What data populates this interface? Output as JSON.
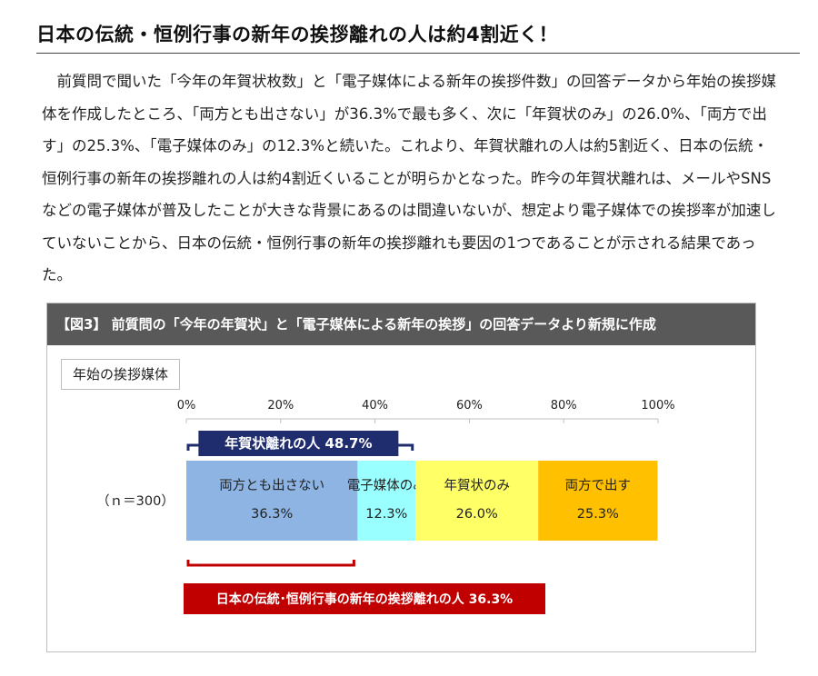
{
  "page": {
    "heading": "日本の伝統・恒例行事の新年の挨拶離れの人は約4割近く！",
    "paragraph": "　前質問で聞いた「今年の年賀状枚数」と「電子媒体による新年の挨拶件数」の回答データから年始の挨拶媒体を作成したところ、「両方とも出さない」が36.3%で最も多く、次に「年賀状のみ」の26.0%、「両方で出す」の25.3%、「電子媒体のみ」の12.3%と続いた。これより、年賀状離れの人は約5割近く、日本の伝統・恒例行事の新年の挨拶離れの人は約4割近くいることが明らかとなった。昨今の年賀状離れは、メールやSNSなどの電子媒体が普及したことが大きな背景にあるのは間違いないが、想定より電子媒体での挨拶率が加速していないことから、日本の伝統・恒例行事の新年の挨拶離れも要因の1つであることが示される結果であった。"
  },
  "figure": {
    "header": "【図3】 前質問の「今年の年賀状」と「電子媒体による新年の挨拶」の回答データより新規に作成",
    "subtitle": "年始の挨拶媒体"
  },
  "chart_data": {
    "type": "bar",
    "orientation": "horizontal-stacked-100",
    "categories": [
      "（ｎ＝300）"
    ],
    "series": [
      {
        "name": "両方とも出さない",
        "values": [
          36.3
        ],
        "label": "36.3%",
        "color": "#8db4e2"
      },
      {
        "name": "電子媒体のみ",
        "values": [
          12.3
        ],
        "label": "12.3%",
        "color": "#99ffff"
      },
      {
        "name": "年賀状のみ",
        "values": [
          26.0
        ],
        "label": "26.0%",
        "color": "#ffff66"
      },
      {
        "name": "両方で出す",
        "values": [
          25.3
        ],
        "label": "25.3%",
        "color": "#ffc000"
      }
    ],
    "x_ticks": [
      "0%",
      "20%",
      "40%",
      "60%",
      "80%",
      "100%"
    ],
    "xlim": [
      0,
      100
    ],
    "grid": false,
    "annotations": [
      {
        "text": "年賀状離れの人 48.7%",
        "from": 0,
        "to": 48.7,
        "position": "above",
        "color": "#1f2d6e"
      },
      {
        "text": "日本の伝統･恒例行事の新年の挨拶離れの人 36.3%",
        "from": 0,
        "to": 36.3,
        "position": "below",
        "color": "#c00000"
      }
    ]
  }
}
